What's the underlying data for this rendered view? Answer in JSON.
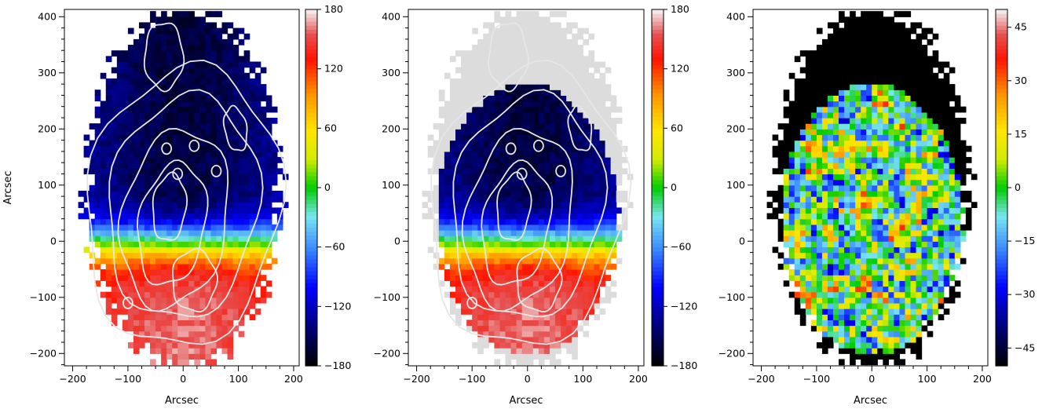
{
  "chart_data": [
    {
      "type": "heatmap",
      "xlabel": "Arcsec",
      "ylabel": "Arcsec",
      "xlim": [
        -215,
        210
      ],
      "ylim": [
        -222,
        413
      ],
      "xticks": [
        -200,
        -100,
        0,
        100,
        200
      ],
      "yticks": [
        -200,
        -100,
        0,
        100,
        200,
        300,
        400
      ],
      "colorbar": {
        "min": -180,
        "max": 180,
        "ticks": [
          -180,
          -120,
          -60,
          0,
          60,
          120,
          180
        ]
      },
      "field": "velocity",
      "contours": true,
      "masked_color": null
    },
    {
      "type": "heatmap",
      "xlabel": "Arcsec",
      "ylabel": "",
      "xlim": [
        -215,
        210
      ],
      "ylim": [
        -222,
        413
      ],
      "xticks": [
        -200,
        -100,
        0,
        100,
        200
      ],
      "yticks": [
        -200,
        -100,
        0,
        100,
        200,
        300,
        400
      ],
      "colorbar": {
        "min": -180,
        "max": 180,
        "ticks": [
          -180,
          -120,
          -60,
          0,
          60,
          120,
          180
        ]
      },
      "field": "model",
      "contours": true,
      "masked_color": "#dcdcdc"
    },
    {
      "type": "heatmap",
      "xlabel": "Arcsec",
      "ylabel": "",
      "xlim": [
        -215,
        210
      ],
      "ylim": [
        -222,
        413
      ],
      "xticks": [
        -200,
        -100,
        0,
        100,
        200
      ],
      "yticks": [
        -200,
        -100,
        0,
        100,
        200,
        300,
        400
      ],
      "colorbar": {
        "min": -50,
        "max": 50,
        "ticks": [
          -45,
          -30,
          -15,
          0,
          15,
          30,
          45
        ]
      },
      "field": "residual",
      "contours": false,
      "masked_color": "#000000"
    }
  ]
}
